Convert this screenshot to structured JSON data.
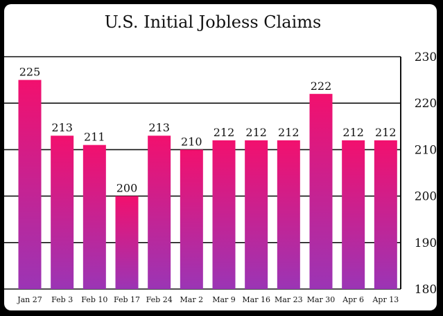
{
  "chart_data": {
    "type": "bar",
    "title": "U.S. Initial Jobless Claims",
    "categories": [
      "Jan 27",
      "Feb 3",
      "Feb 10",
      "Feb 17",
      "Feb 24",
      "Mar 2",
      "Mar 9",
      "Mar 16",
      "Mar 23",
      "Mar 30",
      "Apr 6",
      "Apr 13"
    ],
    "values": [
      225,
      213,
      211,
      200,
      213,
      210,
      212,
      212,
      212,
      222,
      212,
      212
    ],
    "ylim": [
      180,
      230
    ],
    "yticks": [
      180,
      190,
      200,
      210,
      220,
      230
    ],
    "yaxis_position": "right",
    "grid": true,
    "bar_gradient": {
      "top": "#f2106e",
      "bottom": "#9b35b5"
    }
  }
}
